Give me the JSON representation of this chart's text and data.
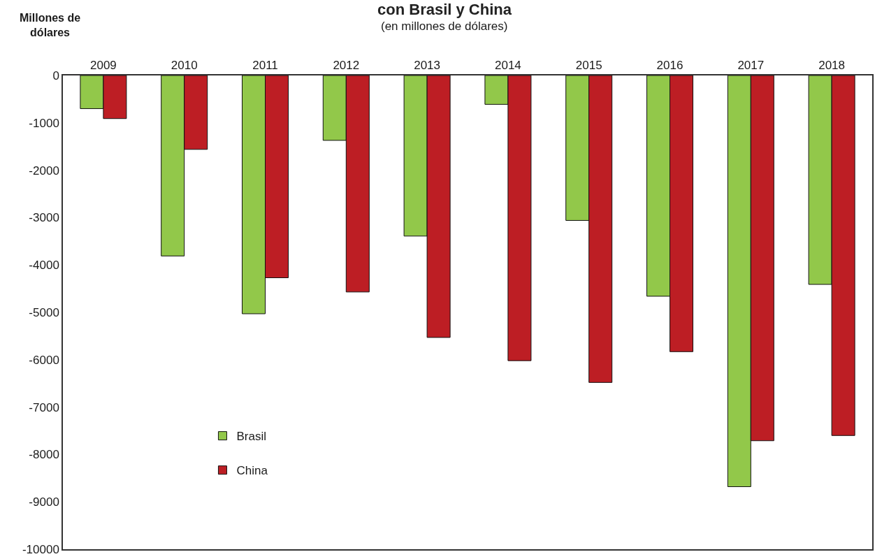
{
  "chart_data": {
    "type": "bar",
    "title": "con Brasil y China",
    "subtitle": "(en millones de dólares)",
    "ylabel": "Millones de\ndólares",
    "categories": [
      "2009",
      "2010",
      "2011",
      "2012",
      "2013",
      "2014",
      "2015",
      "2016",
      "2017",
      "2018"
    ],
    "series": [
      {
        "name": "Brasil",
        "color": "#92c84a",
        "values": [
          -700,
          -3810,
          -5030,
          -1370,
          -3390,
          -610,
          -3060,
          -4660,
          -8680,
          -4410
        ]
      },
      {
        "name": "China",
        "color": "#bd1e24",
        "values": [
          -910,
          -1560,
          -4270,
          -4570,
          -5530,
          -6020,
          -6480,
          -5830,
          -7710,
          -7600
        ]
      }
    ],
    "ylim": [
      -10000,
      0
    ],
    "yticks": [
      0,
      -1000,
      -2000,
      -3000,
      -4000,
      -5000,
      -6000,
      -7000,
      -8000,
      -9000,
      -10000
    ],
    "legend": "bottom left"
  }
}
